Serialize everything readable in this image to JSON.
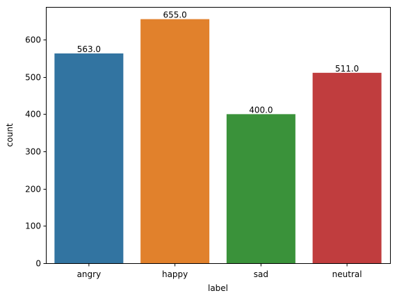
{
  "chart_data": {
    "type": "bar",
    "xlabel": "label",
    "ylabel": "count",
    "categories": [
      "angry",
      "happy",
      "sad",
      "neutral"
    ],
    "values": [
      563.0,
      655.0,
      400.0,
      511.0
    ],
    "data_labels": [
      "563.0",
      "655.0",
      "400.0",
      "511.0"
    ],
    "bar_colors": [
      "#3274a1",
      "#e1812c",
      "#3a923a",
      "#c03d3e"
    ],
    "ylim": [
      0,
      687.75
    ],
    "yticks": [
      0,
      100,
      200,
      300,
      400,
      500,
      600
    ],
    "grid": false,
    "legend": "none"
  }
}
